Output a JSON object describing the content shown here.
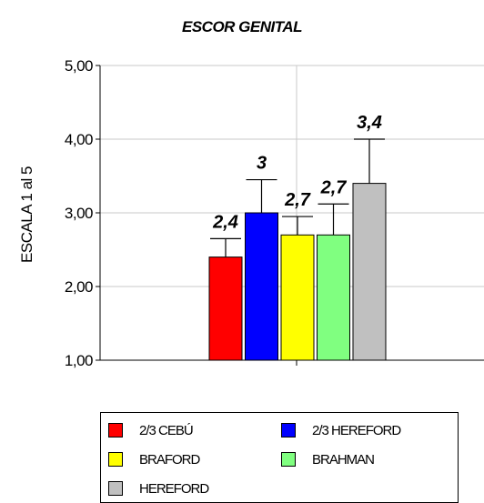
{
  "chart_data": {
    "type": "bar",
    "title": "ESCOR GENITAL",
    "ylabel": "ESCALA 1 al 5",
    "xlabel": "",
    "ylim": [
      1,
      5
    ],
    "yticks": [
      "1,00",
      "2,00",
      "3,00",
      "4,00",
      "5,00"
    ],
    "grid": true,
    "error_bars": true,
    "legend_position": "bottom",
    "series": [
      {
        "name": "2/3 CEBÚ",
        "value": 2.4,
        "label": "2,4",
        "error_upper": 2.65,
        "color": "#ff0000"
      },
      {
        "name": "2/3 HEREFORD",
        "value": 3.0,
        "label": "3",
        "error_upper": 3.45,
        "color": "#0000ff"
      },
      {
        "name": "BRAFORD",
        "value": 2.7,
        "label": "2,7",
        "error_upper": 2.95,
        "color": "#ffff00"
      },
      {
        "name": "BRAHMAN",
        "value": 2.7,
        "label": "2,7",
        "error_upper": 3.12,
        "color": "#80ff80"
      },
      {
        "name": "HEREFORD",
        "value": 3.4,
        "label": "3,4",
        "error_upper": 4.0,
        "color": "#c0c0c0"
      }
    ]
  }
}
